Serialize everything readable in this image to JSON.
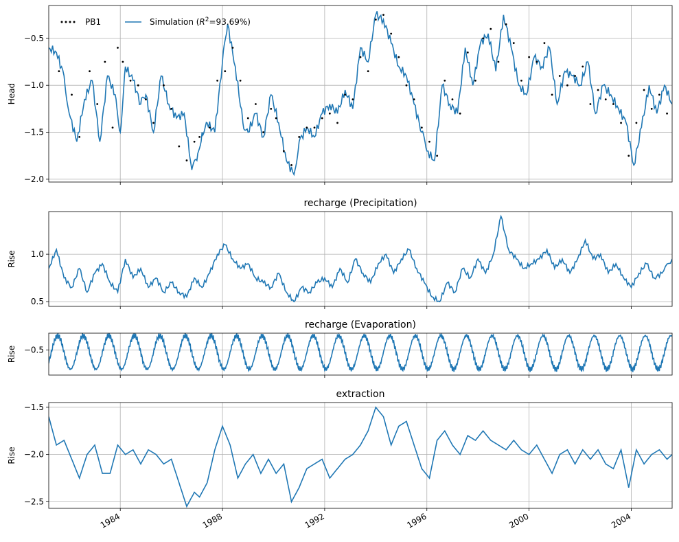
{
  "chart_data": [
    {
      "id": "head",
      "type": "line",
      "title": "",
      "ylabel": "Head",
      "xlim": [
        1981.2,
        2005.6
      ],
      "ylim": [
        -2.03,
        -0.15
      ],
      "yticks": [
        -2.0,
        -1.5,
        -1.0,
        -0.5
      ],
      "ytick_labels": [
        "−2.0",
        "−1.5",
        "−1.0",
        "−0.5"
      ],
      "grid": true,
      "legend_position": "top-left",
      "legend": [
        {
          "label": "PB1",
          "style": "dotted",
          "color": "#000000"
        },
        {
          "label_prefix": "Simulation (",
          "label_math": "R",
          "label_sup": "2",
          "label_suffix": "=93.69%)",
          "style": "solid",
          "color": "#1f77b4"
        }
      ],
      "series": [
        {
          "name": "Simulation (R²=93.69%)",
          "color": "#1f77b4",
          "x": [
            1981.2,
            1981.5,
            1981.8,
            1982.0,
            1982.3,
            1982.6,
            1982.9,
            1983.2,
            1983.5,
            1983.8,
            1984.0,
            1984.2,
            1984.5,
            1984.8,
            1985.0,
            1985.3,
            1985.6,
            1985.9,
            1986.2,
            1986.5,
            1986.8,
            1987.0,
            1987.2,
            1987.4,
            1987.7,
            1988.0,
            1988.2,
            1988.5,
            1988.8,
            1989.0,
            1989.3,
            1989.6,
            1989.9,
            1990.2,
            1990.5,
            1990.8,
            1991.0,
            1991.3,
            1991.6,
            1991.9,
            1992.2,
            1992.5,
            1992.8,
            1993.1,
            1993.4,
            1993.7,
            1994.0,
            1994.3,
            1994.6,
            1994.9,
            1995.2,
            1995.5,
            1995.8,
            1996.0,
            1996.3,
            1996.6,
            1996.9,
            1997.2,
            1997.5,
            1997.8,
            1998.1,
            1998.4,
            1998.7,
            1999.0,
            1999.3,
            1999.6,
            1999.9,
            2000.2,
            2000.5,
            2000.8,
            2001.1,
            2001.4,
            2001.7,
            2002.0,
            2002.3,
            2002.6,
            2002.9,
            2003.2,
            2003.5,
            2003.8,
            2004.1,
            2004.4,
            2004.7,
            2005.0,
            2005.3,
            2005.6
          ],
          "y": [
            -0.6,
            -0.65,
            -0.9,
            -1.3,
            -1.6,
            -1.15,
            -0.95,
            -1.6,
            -0.9,
            -1.1,
            -1.5,
            -0.8,
            -0.95,
            -1.2,
            -1.1,
            -1.5,
            -0.9,
            -1.2,
            -1.35,
            -1.3,
            -1.9,
            -1.8,
            -1.5,
            -1.4,
            -1.5,
            -0.75,
            -0.35,
            -0.8,
            -1.4,
            -1.5,
            -1.3,
            -1.55,
            -1.1,
            -1.4,
            -1.8,
            -1.95,
            -1.6,
            -1.45,
            -1.55,
            -1.3,
            -1.2,
            -1.3,
            -1.05,
            -1.25,
            -0.6,
            -0.75,
            -0.25,
            -0.3,
            -0.55,
            -0.8,
            -0.9,
            -1.2,
            -1.5,
            -1.7,
            -1.8,
            -1.0,
            -1.2,
            -1.3,
            -0.6,
            -1.0,
            -0.55,
            -0.45,
            -0.85,
            -0.25,
            -0.6,
            -1.0,
            -1.1,
            -0.7,
            -0.8,
            -0.6,
            -1.2,
            -0.85,
            -0.9,
            -1.0,
            -0.75,
            -1.3,
            -1.0,
            -1.1,
            -1.25,
            -1.4,
            -1.85,
            -1.45,
            -1.0,
            -1.3,
            -1.0,
            -1.2
          ]
        },
        {
          "name": "PB1",
          "color": "#000000",
          "x": [
            1981.6,
            1982.1,
            1982.4,
            1982.8,
            1983.1,
            1983.4,
            1983.7,
            1983.9,
            1984.1,
            1984.4,
            1984.7,
            1985.0,
            1985.3,
            1985.7,
            1986.0,
            1986.3,
            1986.6,
            1986.9,
            1987.1,
            1987.5,
            1987.8,
            1988.1,
            1988.4,
            1988.7,
            1989.0,
            1989.3,
            1989.6,
            1989.9,
            1990.1,
            1990.4,
            1990.7,
            1991.0,
            1991.3,
            1991.6,
            1991.9,
            1992.2,
            1992.5,
            1992.8,
            1993.1,
            1993.4,
            1993.7,
            1994.0,
            1994.3,
            1994.6,
            1994.9,
            1995.2,
            1995.5,
            1995.8,
            1996.1,
            1996.4,
            1996.7,
            1997.0,
            1997.3,
            1997.6,
            1997.9,
            1998.2,
            1998.5,
            1998.8,
            1999.1,
            1999.4,
            1999.7,
            2000.0,
            2000.3,
            2000.6,
            2000.9,
            2001.2,
            2001.5,
            2001.8,
            2002.1,
            2002.4,
            2002.7,
            2003.0,
            2003.3,
            2003.6,
            2003.9,
            2004.2,
            2004.5,
            2004.8,
            2005.1,
            2005.4
          ],
          "y": [
            -0.85,
            -1.1,
            -1.55,
            -0.85,
            -1.2,
            -0.75,
            -1.45,
            -0.6,
            -0.75,
            -0.95,
            -1.0,
            -1.15,
            -1.4,
            -1.0,
            -1.25,
            -1.65,
            -1.8,
            -1.6,
            -1.55,
            -1.45,
            -0.95,
            -0.85,
            -0.6,
            -0.95,
            -1.35,
            -1.2,
            -1.5,
            -1.25,
            -1.35,
            -1.7,
            -1.85,
            -1.55,
            -1.45,
            -1.45,
            -1.35,
            -1.3,
            -1.4,
            -1.1,
            -1.15,
            -0.7,
            -0.85,
            -0.3,
            -0.25,
            -0.45,
            -0.7,
            -1.0,
            -1.15,
            -1.45,
            -1.6,
            -1.75,
            -0.95,
            -1.15,
            -1.3,
            -0.65,
            -0.95,
            -0.5,
            -0.4,
            -0.75,
            -0.35,
            -0.55,
            -0.95,
            -0.7,
            -0.75,
            -0.55,
            -1.1,
            -0.9,
            -1.0,
            -0.9,
            -0.8,
            -1.2,
            -1.05,
            -1.15,
            -1.2,
            -1.4,
            -1.75,
            -1.4,
            -1.05,
            -1.25,
            -1.1,
            -1.3
          ]
        }
      ]
    },
    {
      "id": "precip",
      "type": "line",
      "title": "recharge (Precipitation)",
      "ylabel": "Rise",
      "xlim": [
        1981.2,
        2005.6
      ],
      "ylim": [
        0.45,
        1.45
      ],
      "yticks": [
        0.5,
        1.0
      ],
      "ytick_labels": [
        "0.5",
        "1.0"
      ],
      "grid": true,
      "series": [
        {
          "name": "",
          "color": "#1f77b4",
          "x": [
            1981.2,
            1981.5,
            1981.8,
            1982.1,
            1982.4,
            1982.7,
            1983.0,
            1983.3,
            1983.6,
            1983.9,
            1984.2,
            1984.5,
            1984.8,
            1985.1,
            1985.4,
            1985.7,
            1986.0,
            1986.3,
            1986.6,
            1986.9,
            1987.2,
            1987.5,
            1987.8,
            1988.1,
            1988.4,
            1988.7,
            1989.0,
            1989.3,
            1989.6,
            1989.9,
            1990.2,
            1990.5,
            1990.8,
            1991.1,
            1991.4,
            1991.7,
            1992.0,
            1992.3,
            1992.6,
            1992.9,
            1993.2,
            1993.5,
            1993.8,
            1994.1,
            1994.4,
            1994.7,
            1995.0,
            1995.3,
            1995.6,
            1995.9,
            1996.2,
            1996.5,
            1996.8,
            1997.1,
            1997.4,
            1997.7,
            1998.0,
            1998.3,
            1998.6,
            1998.9,
            1999.2,
            1999.5,
            1999.8,
            2000.1,
            2000.4,
            2000.7,
            2001.0,
            2001.3,
            2001.6,
            2001.9,
            2002.2,
            2002.5,
            2002.8,
            2003.1,
            2003.4,
            2003.7,
            2004.0,
            2004.3,
            2004.6,
            2004.9,
            2005.2,
            2005.6
          ],
          "y": [
            0.85,
            1.05,
            0.75,
            0.65,
            0.85,
            0.6,
            0.8,
            0.9,
            0.7,
            0.6,
            0.95,
            0.75,
            0.85,
            0.65,
            0.75,
            0.6,
            0.7,
            0.6,
            0.55,
            0.75,
            0.65,
            0.8,
            1.0,
            1.1,
            0.95,
            0.85,
            0.9,
            0.75,
            0.7,
            0.65,
            0.8,
            0.6,
            0.5,
            0.65,
            0.6,
            0.7,
            0.75,
            0.65,
            0.85,
            0.7,
            0.95,
            0.8,
            0.7,
            0.9,
            1.0,
            0.8,
            0.95,
            1.05,
            0.85,
            0.7,
            0.55,
            0.5,
            0.7,
            0.6,
            0.85,
            0.75,
            0.95,
            0.8,
            1.0,
            1.4,
            1.05,
            0.95,
            0.85,
            0.9,
            0.95,
            1.05,
            0.85,
            0.95,
            0.8,
            0.95,
            1.15,
            0.95,
            1.0,
            0.8,
            0.9,
            0.75,
            0.65,
            0.8,
            0.9,
            0.75,
            0.8,
            0.95
          ]
        }
      ]
    },
    {
      "id": "evap",
      "type": "line",
      "title": "recharge (Evaporation)",
      "ylabel": "Rise",
      "xlim": [
        1981.2,
        2005.6
      ],
      "ylim": [
        -0.8,
        -0.3
      ],
      "yticks": [
        -0.5
      ],
      "ytick_labels": [
        "−0.5"
      ],
      "grid": true,
      "series": [
        {
          "name": "",
          "color": "#1f77b4",
          "periodic": {
            "period": 1.0,
            "phase": 1981.55,
            "center": -0.53,
            "amplitude": 0.2
          },
          "x": [],
          "y": []
        }
      ]
    },
    {
      "id": "extract",
      "type": "line",
      "title": "extraction",
      "ylabel": "Rise",
      "xlim": [
        1981.2,
        2005.6
      ],
      "ylim": [
        -2.57,
        -1.45
      ],
      "yticks": [
        -2.5,
        -2.0,
        -1.5
      ],
      "ytick_labels": [
        "−2.5",
        "−2.0",
        "−1.5"
      ],
      "grid": true,
      "xticks": [
        1984,
        1988,
        1992,
        1996,
        2000,
        2004
      ],
      "xtick_labels": [
        "1984",
        "1988",
        "1992",
        "1996",
        "2000",
        "2004"
      ],
      "series": [
        {
          "name": "",
          "color": "#1f77b4",
          "x": [
            1981.2,
            1981.5,
            1981.8,
            1982.1,
            1982.4,
            1982.7,
            1983.0,
            1983.3,
            1983.6,
            1983.9,
            1984.2,
            1984.5,
            1984.8,
            1985.1,
            1985.4,
            1985.7,
            1986.0,
            1986.3,
            1986.6,
            1986.9,
            1987.1,
            1987.4,
            1987.7,
            1988.0,
            1988.3,
            1988.6,
            1988.9,
            1989.2,
            1989.5,
            1989.8,
            1990.1,
            1990.4,
            1990.7,
            1991.0,
            1991.3,
            1991.6,
            1991.9,
            1992.2,
            1992.5,
            1992.8,
            1993.1,
            1993.4,
            1993.7,
            1994.0,
            1994.3,
            1994.6,
            1994.9,
            1995.2,
            1995.5,
            1995.8,
            1996.1,
            1996.4,
            1996.7,
            1997.0,
            1997.3,
            1997.6,
            1997.9,
            1998.2,
            1998.5,
            1998.8,
            1999.1,
            1999.4,
            1999.7,
            2000.0,
            2000.3,
            2000.6,
            2000.9,
            2001.2,
            2001.5,
            2001.8,
            2002.1,
            2002.4,
            2002.7,
            2003.0,
            2003.3,
            2003.6,
            2003.9,
            2004.2,
            2004.5,
            2004.8,
            2005.1,
            2005.4,
            2005.6
          ],
          "y": [
            -1.6,
            -1.9,
            -1.85,
            -2.05,
            -2.25,
            -2.0,
            -1.9,
            -2.2,
            -2.2,
            -1.9,
            -2.0,
            -1.95,
            -2.1,
            -1.95,
            -2.0,
            -2.1,
            -2.05,
            -2.3,
            -2.55,
            -2.4,
            -2.45,
            -2.3,
            -1.95,
            -1.7,
            -1.9,
            -2.25,
            -2.1,
            -2.0,
            -2.2,
            -2.05,
            -2.2,
            -2.1,
            -2.5,
            -2.35,
            -2.15,
            -2.1,
            -2.05,
            -2.25,
            -2.15,
            -2.05,
            -2.0,
            -1.9,
            -1.75,
            -1.5,
            -1.6,
            -1.9,
            -1.7,
            -1.65,
            -1.9,
            -2.15,
            -2.25,
            -1.85,
            -1.75,
            -1.9,
            -2.0,
            -1.8,
            -1.85,
            -1.75,
            -1.85,
            -1.9,
            -1.95,
            -1.85,
            -1.95,
            -2.0,
            -1.9,
            -2.05,
            -2.2,
            -2.0,
            -1.95,
            -2.1,
            -1.95,
            -2.05,
            -1.95,
            -2.1,
            -2.15,
            -1.95,
            -2.35,
            -1.95,
            -2.1,
            -2.0,
            -1.95,
            -2.05,
            -2.0
          ]
        }
      ]
    }
  ]
}
